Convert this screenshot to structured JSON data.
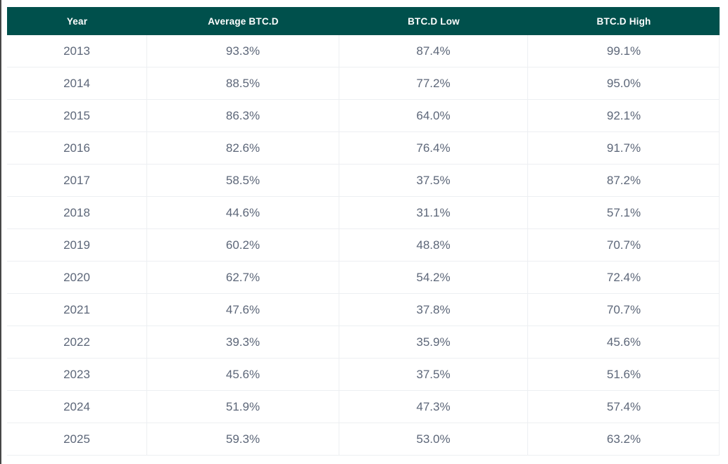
{
  "colors": {
    "header_bg": "#00504c",
    "header_text": "#ffffff",
    "cell_text": "#5d6779",
    "row_border": "#edeff2",
    "page_bg": "#ffffff",
    "edge_line": "#474747"
  },
  "chart_data": {
    "type": "table",
    "title": "",
    "columns": [
      "Year",
      "Average BTC.D",
      "BTC.D Low",
      "BTC.D High"
    ],
    "rows": [
      [
        "2013",
        "93.3%",
        "87.4%",
        "99.1%"
      ],
      [
        "2014",
        "88.5%",
        "77.2%",
        "95.0%"
      ],
      [
        "2015",
        "86.3%",
        "64.0%",
        "92.1%"
      ],
      [
        "2016",
        "82.6%",
        "76.4%",
        "91.7%"
      ],
      [
        "2017",
        "58.5%",
        "37.5%",
        "87.2%"
      ],
      [
        "2018",
        "44.6%",
        "31.1%",
        "57.1%"
      ],
      [
        "2019",
        "60.2%",
        "48.8%",
        "70.7%"
      ],
      [
        "2020",
        "62.7%",
        "54.2%",
        "72.4%"
      ],
      [
        "2021",
        "47.6%",
        "37.8%",
        "70.7%"
      ],
      [
        "2022",
        "39.3%",
        "35.9%",
        "45.6%"
      ],
      [
        "2023",
        "45.6%",
        "37.5%",
        "51.6%"
      ],
      [
        "2024",
        "51.9%",
        "47.3%",
        "57.4%"
      ],
      [
        "2025",
        "59.3%",
        "53.0%",
        "63.2%"
      ]
    ]
  }
}
